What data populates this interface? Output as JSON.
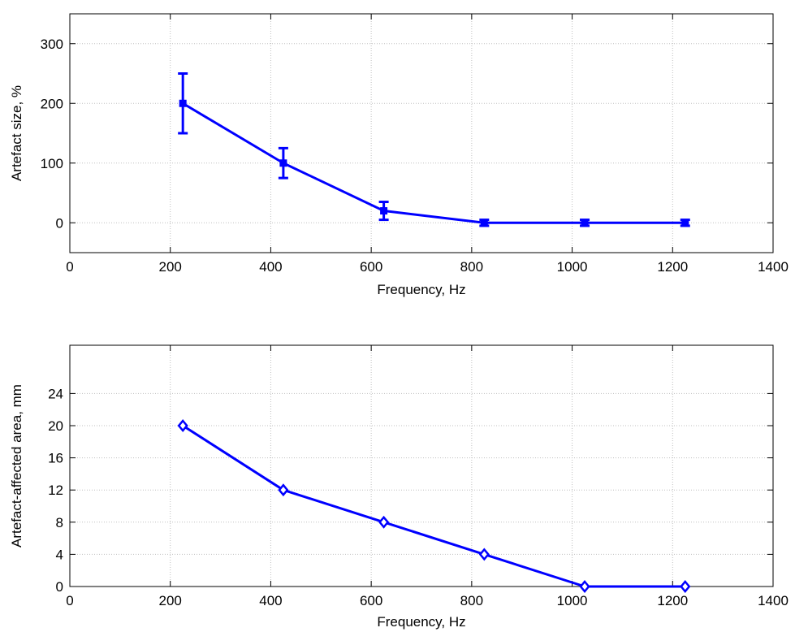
{
  "chart_data": [
    {
      "type": "line",
      "xlabel": "Frequency, Hz",
      "ylabel": "Artefact size, %",
      "xlim": [
        0,
        1400
      ],
      "ylim": [
        -50,
        350
      ],
      "xticks": [
        0,
        200,
        400,
        600,
        800,
        1000,
        1200,
        1400
      ],
      "yticks": [
        0,
        100,
        200,
        300
      ],
      "grid": true,
      "marker": "square",
      "series": [
        {
          "x": [
            225,
            425,
            625,
            825,
            1025,
            1225
          ],
          "y": [
            200,
            100,
            20,
            0,
            0,
            0
          ],
          "err": [
            50,
            25,
            15,
            5,
            5,
            5
          ],
          "color": "#0000ff"
        }
      ]
    },
    {
      "type": "line",
      "xlabel": "Frequency, Hz",
      "ylabel": "Artefact-affected area, mm",
      "xlim": [
        0,
        1400
      ],
      "ylim": [
        0,
        30
      ],
      "xticks": [
        0,
        200,
        400,
        600,
        800,
        1000,
        1200,
        1400
      ],
      "yticks": [
        0,
        4,
        8,
        12,
        16,
        20,
        24
      ],
      "grid": true,
      "marker": "diamond",
      "series": [
        {
          "x": [
            225,
            425,
            625,
            825,
            1025,
            1225
          ],
          "y": [
            20,
            12,
            8,
            4,
            0,
            0
          ],
          "color": "#0000ff"
        }
      ]
    }
  ]
}
